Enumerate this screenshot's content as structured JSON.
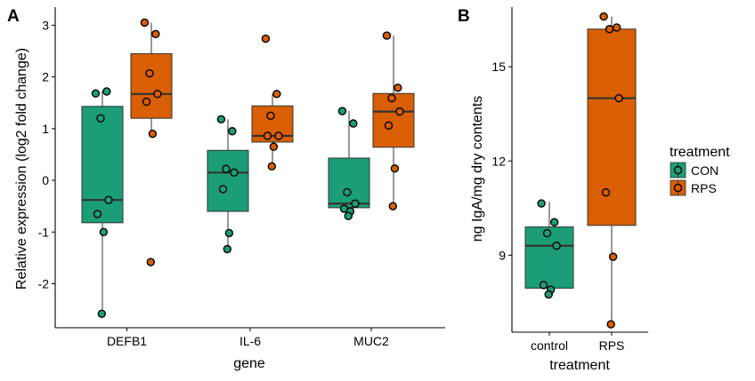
{
  "chart_data": [
    {
      "panel_label": "A",
      "type": "box",
      "xlabel": "gene",
      "ylabel": "Relative expression (log2 fold change)",
      "ylim": [
        -2.85,
        3.35
      ],
      "yticks": [
        -2,
        -1,
        0,
        1,
        2,
        3
      ],
      "categories": [
        "DEFB1",
        "IL-6",
        "MUC2"
      ],
      "series": [
        {
          "name": "CON",
          "boxes": [
            {
              "category": "DEFB1",
              "q1": -0.82,
              "median": -0.38,
              "q3": 1.43,
              "whisker_low": -2.58,
              "whisker_high": 1.72,
              "points": [
                1.68,
                1.72,
                1.2,
                -0.38,
                -0.65,
                -1.0,
                -2.58
              ]
            },
            {
              "category": "IL-6",
              "q1": -0.6,
              "median": 0.15,
              "q3": 0.58,
              "whisker_low": -1.33,
              "whisker_high": 1.18,
              "points": [
                1.18,
                0.95,
                0.22,
                0.15,
                -0.17,
                -1.02,
                -1.33
              ]
            },
            {
              "category": "MUC2",
              "q1": -0.53,
              "median": -0.45,
              "q3": 0.43,
              "whisker_low": -0.69,
              "whisker_high": 1.34,
              "points": [
                1.34,
                1.1,
                -0.23,
                -0.45,
                -0.55,
                -0.6,
                -0.69
              ]
            }
          ]
        },
        {
          "name": "RPS",
          "boxes": [
            {
              "category": "DEFB1",
              "q1": 1.2,
              "median": 1.67,
              "q3": 2.45,
              "whisker_low": 0.9,
              "whisker_high": 3.05,
              "points": [
                3.05,
                2.83,
                2.07,
                1.67,
                1.52,
                0.9,
                -1.58
              ]
            },
            {
              "category": "IL-6",
              "q1": 0.74,
              "median": 0.86,
              "q3": 1.44,
              "whisker_low": 0.27,
              "whisker_high": 1.67,
              "points": [
                2.74,
                1.67,
                1.25,
                0.86,
                0.86,
                0.65,
                0.27
              ]
            },
            {
              "category": "MUC2",
              "q1": 0.64,
              "median": 1.33,
              "q3": 1.68,
              "whisker_low": -0.5,
              "whisker_high": 2.8,
              "points": [
                2.8,
                1.79,
                1.59,
                1.33,
                1.06,
                0.23,
                -0.5
              ]
            }
          ]
        }
      ]
    },
    {
      "panel_label": "B",
      "type": "box",
      "xlabel": "treatment",
      "ylabel": "ng IgA/mg dry contents",
      "ylim": [
        6.55,
        16.9
      ],
      "yticks": [
        9,
        12,
        15
      ],
      "categories": [
        "control",
        "RPS"
      ],
      "series": [
        {
          "name": "CON",
          "boxes": [
            {
              "category": "control",
              "q1": 7.95,
              "median": 9.3,
              "q3": 9.9,
              "whisker_low": 7.75,
              "whisker_high": 10.7,
              "points": [
                10.65,
                10.05,
                9.7,
                9.3,
                8.05,
                7.9,
                7.75
              ]
            }
          ]
        },
        {
          "name": "RPS",
          "boxes": [
            {
              "category": "RPS",
              "q1": 9.95,
              "median": 14.0,
              "q3": 16.2,
              "whisker_low": 6.8,
              "whisker_high": 16.6,
              "points": [
                16.6,
                16.25,
                16.2,
                14.0,
                11.0,
                8.95,
                6.8
              ]
            }
          ]
        }
      ]
    }
  ],
  "legend": {
    "title": "treatment",
    "items": [
      {
        "label": "CON",
        "color": "#1B9E77"
      },
      {
        "label": "RPS",
        "color": "#D95F02"
      }
    ]
  },
  "colors": {
    "CON": "#1B9E77",
    "RPS": "#D95F02",
    "outline": "#333333",
    "point_outline": "#000000"
  }
}
